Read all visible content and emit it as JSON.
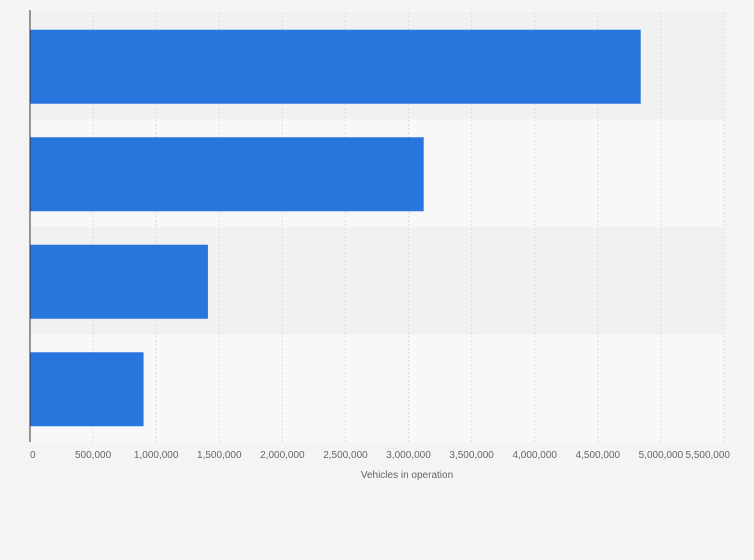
{
  "chart_data": {
    "type": "bar",
    "orientation": "horizontal",
    "categories": [
      "",
      "",
      "",
      ""
    ],
    "values": [
      4840000,
      3120000,
      1410000,
      900000
    ],
    "xlabel": "Vehicles in operation",
    "ylabel": "",
    "xlim": [
      0,
      5500000
    ],
    "x_ticks": [
      0,
      500000,
      1000000,
      1500000,
      2000000,
      2500000,
      3000000,
      3500000,
      4000000,
      4500000,
      5000000,
      5500000
    ],
    "x_tick_labels": [
      "0",
      "500,000",
      "1,000,000",
      "1,500,000",
      "2,000,000",
      "2,500,000",
      "3,000,000",
      "3,500,000",
      "4,000,000",
      "4,500,000",
      "5,000,000",
      "5,500,000"
    ],
    "grid": true,
    "legend": "none",
    "colors": {
      "bar": "#2876dd",
      "band_dark": "#f1f1f1",
      "band_light": "#f8f8f8",
      "grid": "#dcdcdc",
      "axis": "#333333",
      "text": "#666666",
      "background": "#f4f4f4"
    }
  }
}
